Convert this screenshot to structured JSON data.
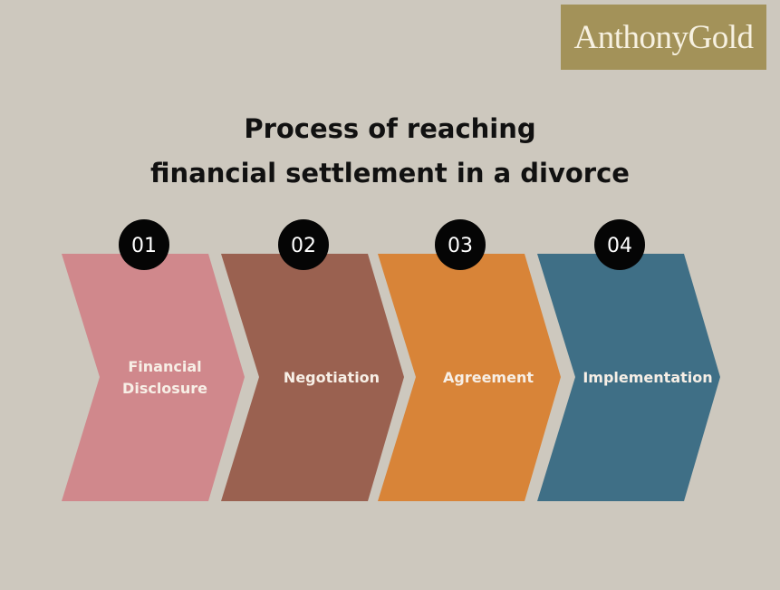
{
  "logo": {
    "text": "AnthonyGold",
    "color": "#a39259"
  },
  "title": {
    "line1": "Process of reaching",
    "line2": "financial settlement in a divorce"
  },
  "steps": [
    {
      "number": "01",
      "lines": [
        "Financial",
        "Disclosure"
      ],
      "color": "#d0888c"
    },
    {
      "number": "02",
      "lines": [
        "Negotiation"
      ],
      "color": "#9a6150"
    },
    {
      "number": "03",
      "lines": [
        "Agreement"
      ],
      "color": "#d88438"
    },
    {
      "number": "04",
      "lines": [
        "Implementation"
      ],
      "color": "#3f6f86"
    }
  ]
}
